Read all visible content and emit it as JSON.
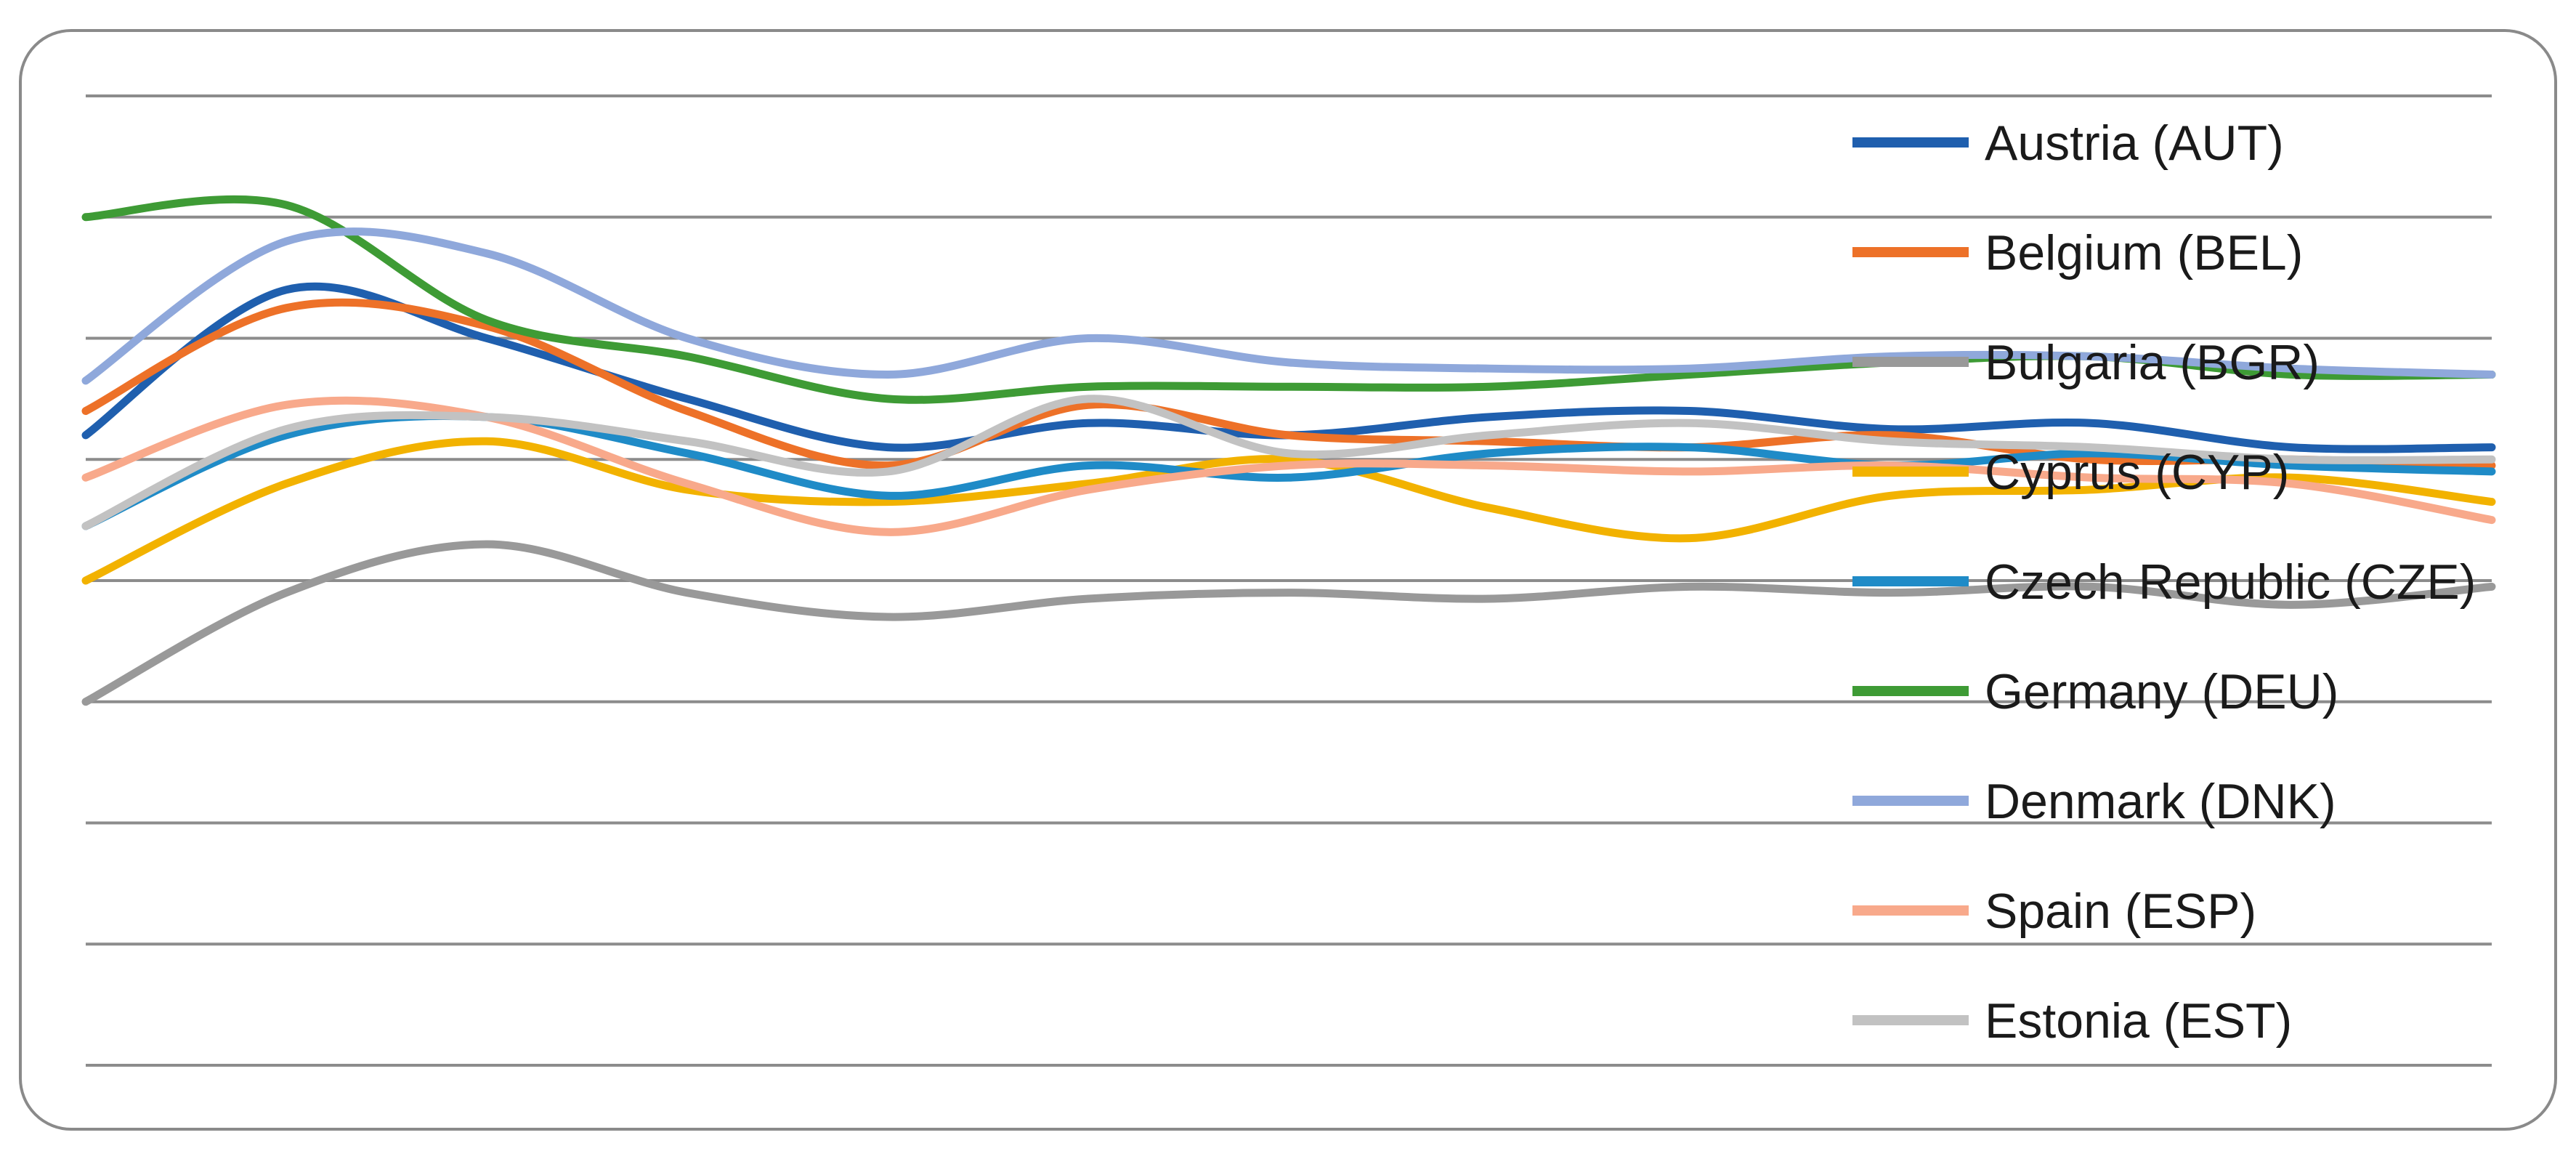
{
  "chart_data": {
    "type": "line",
    "title": "",
    "xlabel": "",
    "ylabel": "",
    "x": [
      1,
      2,
      3,
      4,
      5,
      6,
      7,
      8,
      9,
      10,
      11,
      12,
      13
    ],
    "ylim": [
      0,
      8
    ],
    "grid": true,
    "smooth": true,
    "legend_position": "right",
    "series": [
      {
        "name": "Austria (AUT)",
        "color": "#1f5fae",
        "values": [
          5.2,
          6.4,
          6.0,
          5.5,
          5.1,
          5.3,
          5.2,
          5.35,
          5.4,
          5.25,
          5.3,
          5.1,
          5.1
        ]
      },
      {
        "name": "Belgium (BEL)",
        "color": "#ed7128",
        "values": [
          5.4,
          6.25,
          6.1,
          5.4,
          4.95,
          5.45,
          5.2,
          5.15,
          5.1,
          5.2,
          5.0,
          5.0,
          4.95
        ]
      },
      {
        "name": "Bulgaria (BGR)",
        "color": "#999999",
        "values": [
          3.0,
          3.9,
          4.3,
          3.9,
          3.7,
          3.85,
          3.9,
          3.85,
          3.95,
          3.9,
          3.95,
          3.8,
          3.95
        ]
      },
      {
        "name": "Cyprus (CYP)",
        "color": "#f2b200",
        "values": [
          4.0,
          4.8,
          5.15,
          4.75,
          4.65,
          4.8,
          5.0,
          4.6,
          4.35,
          4.7,
          4.75,
          4.85,
          4.65
        ]
      },
      {
        "name": "Czech Republic (CZE)",
        "color": "#1f8bc7",
        "values": [
          4.45,
          5.2,
          5.35,
          5.05,
          4.7,
          4.95,
          4.85,
          5.05,
          5.1,
          4.95,
          5.05,
          4.95,
          4.9
        ]
      },
      {
        "name": "Germany (DEU)",
        "color": "#3e9b35",
        "values": [
          7.0,
          7.1,
          6.15,
          5.85,
          5.5,
          5.6,
          5.6,
          5.6,
          5.7,
          5.8,
          5.85,
          5.7,
          5.7
        ]
      },
      {
        "name": "Denmark (DNK)",
        "color": "#8fa8db",
        "values": [
          5.65,
          6.8,
          6.7,
          6.0,
          5.7,
          6.0,
          5.8,
          5.75,
          5.75,
          5.85,
          5.85,
          5.75,
          5.7
        ]
      },
      {
        "name": "Spain (ESP)",
        "color": "#f8a98b",
        "values": [
          4.85,
          5.45,
          5.35,
          4.8,
          4.4,
          4.75,
          4.95,
          4.95,
          4.9,
          4.95,
          4.85,
          4.8,
          4.5
        ]
      },
      {
        "name": "Estonia (EST)",
        "color": "#c2c2c2",
        "values": [
          4.45,
          5.25,
          5.35,
          5.15,
          4.9,
          5.5,
          5.05,
          5.2,
          5.3,
          5.15,
          5.1,
          5.0,
          5.0
        ]
      }
    ]
  }
}
